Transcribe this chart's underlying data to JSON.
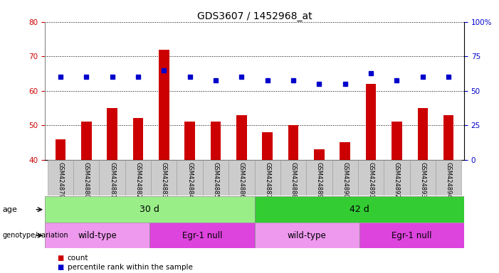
{
  "title": "GDS3607 / 1452968_at",
  "samples": [
    "GSM424879",
    "GSM424880",
    "GSM424881",
    "GSM424882",
    "GSM424883",
    "GSM424884",
    "GSM424885",
    "GSM424886",
    "GSM424887",
    "GSM424888",
    "GSM424889",
    "GSM424890",
    "GSM424891",
    "GSM424892",
    "GSM424893",
    "GSM424894"
  ],
  "counts": [
    46,
    51,
    55,
    52,
    72,
    51,
    51,
    53,
    48,
    50,
    43,
    45,
    62,
    51,
    55,
    53
  ],
  "percentiles": [
    64,
    64,
    64,
    64,
    66,
    64,
    63,
    64,
    63,
    63,
    62,
    62,
    65,
    63,
    64,
    64
  ],
  "ylim_left": [
    40,
    80
  ],
  "ylim_right": [
    0,
    100
  ],
  "yticks_left": [
    40,
    50,
    60,
    70,
    80
  ],
  "yticks_right": [
    0,
    25,
    50,
    75,
    100
  ],
  "bar_color": "#cc0000",
  "dot_color": "#0000cc",
  "age_groups": [
    {
      "label": "30 d",
      "start": 0,
      "end": 8,
      "color": "#99ee88"
    },
    {
      "label": "42 d",
      "start": 8,
      "end": 16,
      "color": "#33cc33"
    }
  ],
  "genotype_groups": [
    {
      "label": "wild-type",
      "start": 0,
      "end": 4,
      "color": "#ee99ee"
    },
    {
      "label": "Egr-1 null",
      "start": 4,
      "end": 8,
      "color": "#dd44dd"
    },
    {
      "label": "wild-type",
      "start": 8,
      "end": 12,
      "color": "#ee99ee"
    },
    {
      "label": "Egr-1 null",
      "start": 12,
      "end": 16,
      "color": "#dd44dd"
    }
  ],
  "legend_count_label": "count",
  "legend_pct_label": "percentile rank within the sample",
  "bg_color": "#ffffff",
  "tick_label_bg": "#cccccc",
  "bar_width": 0.4
}
